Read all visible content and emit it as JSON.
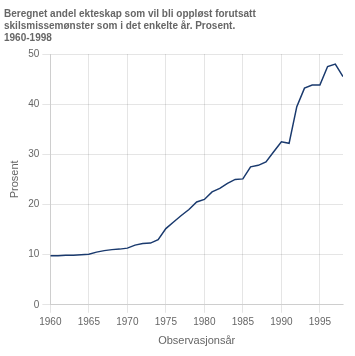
{
  "chart_data": {
    "type": "line",
    "title": [
      "Beregnet andel ekteskap som vil bli oppløst forutsatt",
      "skilsmissemønster som i det enkelte år. Prosent.",
      "1960-1998"
    ],
    "xlabel": "Observasjonsår",
    "ylabel": "Prosent",
    "x": [
      1960,
      1961,
      1962,
      1963,
      1964,
      1965,
      1966,
      1967,
      1968,
      1969,
      1970,
      1971,
      1972,
      1973,
      1974,
      1975,
      1976,
      1977,
      1978,
      1979,
      1980,
      1981,
      1982,
      1983,
      1984,
      1985,
      1986,
      1987,
      1988,
      1989,
      1990,
      1991,
      1992,
      1993,
      1994,
      1995,
      1996,
      1997,
      1998
    ],
    "values": [
      9.8,
      9.8,
      9.9,
      9.9,
      10.0,
      10.1,
      10.5,
      10.8,
      11.0,
      11.1,
      11.3,
      11.9,
      12.2,
      12.3,
      13.0,
      15.2,
      16.5,
      17.8,
      19.0,
      20.5,
      21.0,
      22.5,
      23.2,
      24.2,
      25.0,
      25.1,
      27.5,
      27.8,
      28.5,
      30.5,
      32.5,
      32.2,
      39.5,
      43.2,
      43.8,
      43.8,
      47.5,
      48.0,
      45.5
    ],
    "color": "#1a3a6e",
    "xlim": [
      1960,
      1998
    ],
    "ylim": [
      0,
      50
    ],
    "xticks": [
      1960,
      1965,
      1970,
      1975,
      1980,
      1985,
      1990,
      1995
    ],
    "yticks": [
      0,
      10,
      20,
      30,
      40,
      50
    ],
    "grid": true
  }
}
